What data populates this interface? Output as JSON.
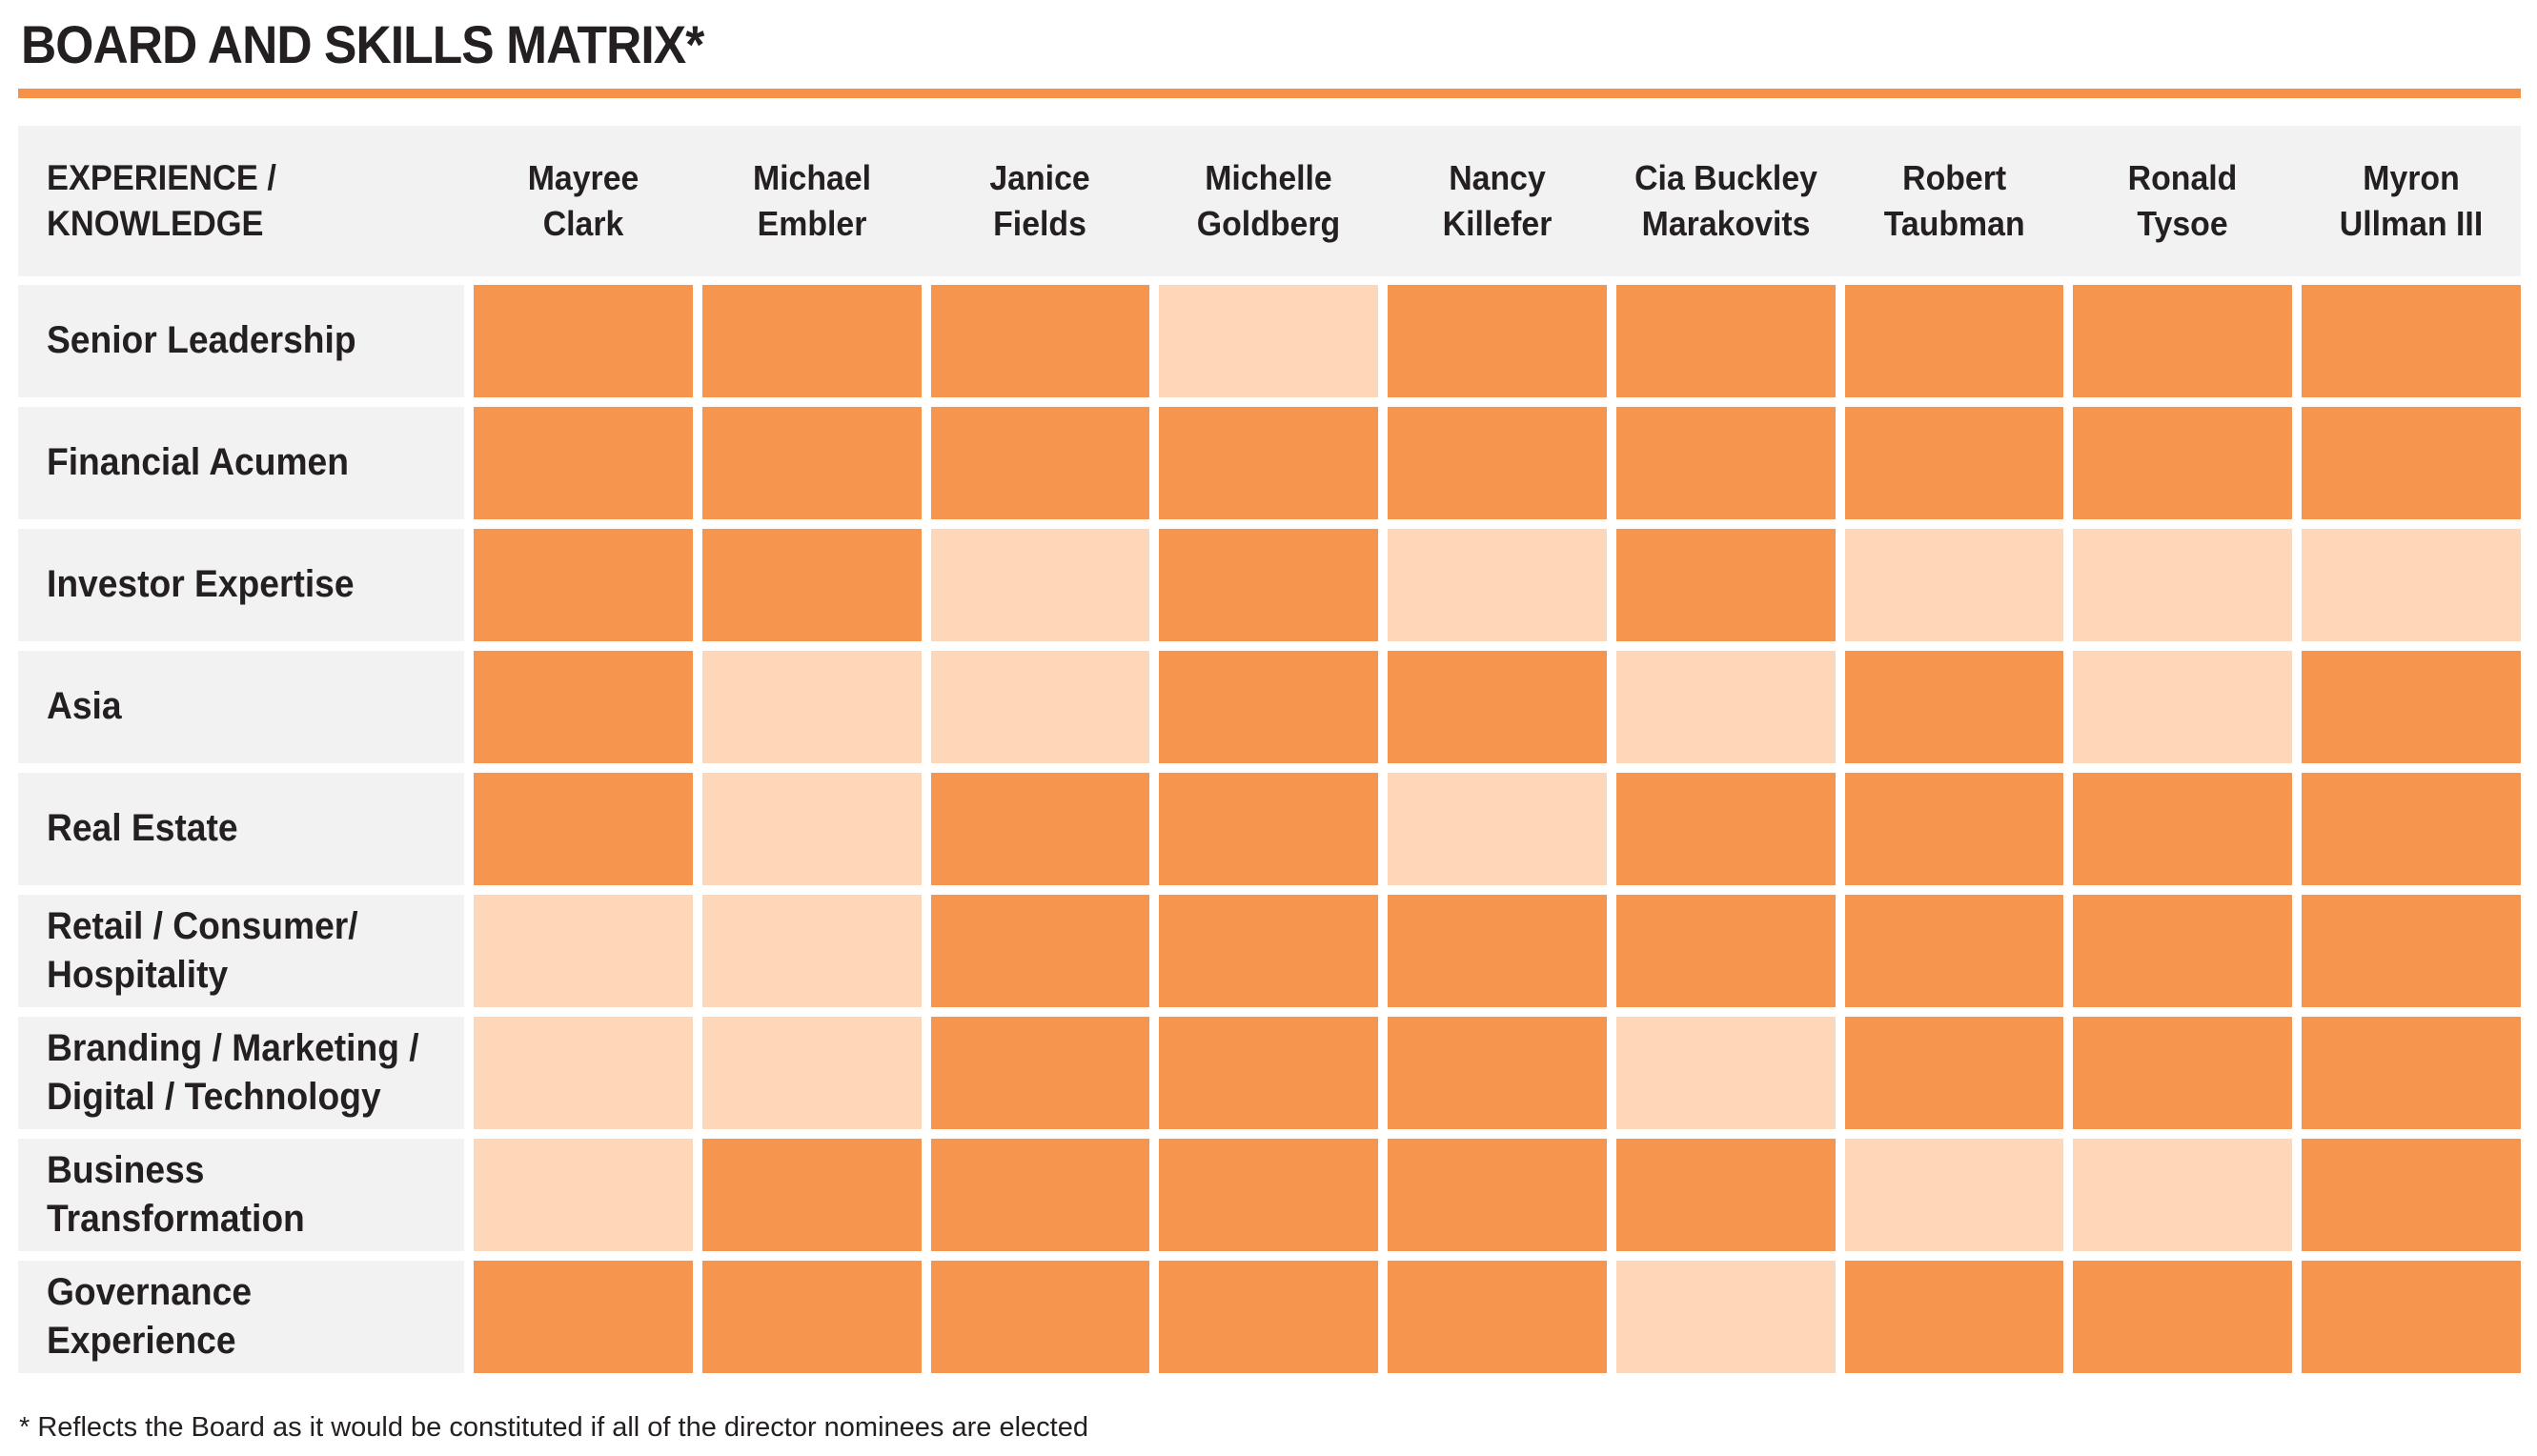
{
  "title": "BOARD AND SKILLS MATRIX*",
  "header": {
    "experience_label": "EXPERIENCE /\nKNOWLEDGE"
  },
  "directors": [
    "Mayree\nClark",
    "Michael\nEmbler",
    "Janice\nFields",
    "Michelle\nGoldberg",
    "Nancy\nKillefer",
    "Cia Buckley\nMarakovits",
    "Robert\nTaubman",
    "Ronald\nTysoe",
    "Myron\nUllman III"
  ],
  "rows": [
    {
      "label": "Senior Leadership",
      "cells": [
        "full",
        "full",
        "full",
        "partial",
        "full",
        "full",
        "full",
        "full",
        "full"
      ]
    },
    {
      "label": "Financial Acumen",
      "cells": [
        "full",
        "full",
        "full",
        "full",
        "full",
        "full",
        "full",
        "full",
        "full"
      ]
    },
    {
      "label": "Investor Expertise",
      "cells": [
        "full",
        "full",
        "partial",
        "full",
        "partial",
        "full",
        "partial",
        "partial",
        "partial"
      ]
    },
    {
      "label": "Asia",
      "cells": [
        "full",
        "partial",
        "partial",
        "full",
        "full",
        "partial",
        "full",
        "partial",
        "full"
      ]
    },
    {
      "label": "Real Estate",
      "cells": [
        "full",
        "partial",
        "full",
        "full",
        "partial",
        "full",
        "full",
        "full",
        "full"
      ]
    },
    {
      "label": "Retail / Consumer/\nHospitality",
      "cells": [
        "partial",
        "partial",
        "full",
        "full",
        "full",
        "full",
        "full",
        "full",
        "full"
      ]
    },
    {
      "label": "Branding / Marketing /\nDigital / Technology",
      "cells": [
        "partial",
        "partial",
        "full",
        "full",
        "full",
        "partial",
        "full",
        "full",
        "full"
      ]
    },
    {
      "label": "Business\nTransformation",
      "cells": [
        "partial",
        "full",
        "full",
        "full",
        "full",
        "full",
        "partial",
        "partial",
        "full"
      ]
    },
    {
      "label": "Governance Experience",
      "cells": [
        "full",
        "full",
        "full",
        "full",
        "full",
        "partial",
        "full",
        "full",
        "full"
      ]
    }
  ],
  "footnote": "* Reflects the Board as it would be constituted if all of the director nominees are elected",
  "colors": {
    "full": "#F6954D",
    "partial": "#FDD7B8",
    "row_bg": "#F2F2F3",
    "rule": "#F6914A",
    "text": "#242021"
  },
  "chart_data": {
    "type": "heatmap",
    "title": "BOARD AND SKILLS MATRIX*",
    "columns": [
      "Mayree Clark",
      "Michael Embler",
      "Janice Fields",
      "Michelle Goldberg",
      "Nancy Killefer",
      "Cia Buckley Marakovits",
      "Robert Taubman",
      "Ronald Tysoe",
      "Myron Ullman III"
    ],
    "rows": [
      "Senior Leadership",
      "Financial Acumen",
      "Investor Expertise",
      "Asia",
      "Real Estate",
      "Retail / Consumer/ Hospitality",
      "Branding / Marketing / Digital / Technology",
      "Business Transformation",
      "Governance Experience"
    ],
    "values": [
      [
        1,
        1,
        1,
        0.5,
        1,
        1,
        1,
        1,
        1
      ],
      [
        1,
        1,
        1,
        1,
        1,
        1,
        1,
        1,
        1
      ],
      [
        1,
        1,
        0.5,
        1,
        0.5,
        1,
        0.5,
        0.5,
        0.5
      ],
      [
        1,
        0.5,
        0.5,
        1,
        1,
        0.5,
        1,
        0.5,
        1
      ],
      [
        1,
        0.5,
        1,
        1,
        0.5,
        1,
        1,
        1,
        1
      ],
      [
        0.5,
        0.5,
        1,
        1,
        1,
        1,
        1,
        1,
        1
      ],
      [
        0.5,
        0.5,
        1,
        1,
        1,
        0.5,
        1,
        1,
        1
      ],
      [
        0.5,
        1,
        1,
        1,
        1,
        1,
        0.5,
        0.5,
        1
      ],
      [
        1,
        1,
        1,
        1,
        1,
        0.5,
        1,
        1,
        1
      ]
    ],
    "value_legend": {
      "1": "dark orange cell",
      "0.5": "light orange cell"
    },
    "annotations": [
      "* Reflects the Board as it would be constituted if all of the director nominees are elected"
    ],
    "legend_position": "none",
    "grid": false
  }
}
